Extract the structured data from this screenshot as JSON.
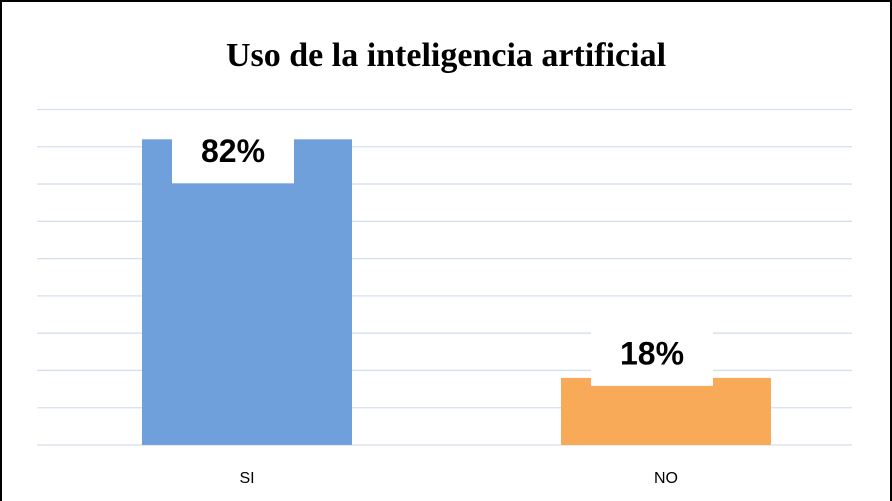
{
  "chart_data": {
    "type": "bar",
    "title": "Uso de la inteligencia artificial",
    "categories": [
      "SI",
      "NO"
    ],
    "values": [
      82,
      18
    ],
    "value_labels": [
      "82%",
      "18%"
    ],
    "colors": [
      "#6fa0dc",
      "#f9aa58"
    ],
    "ylim": [
      0,
      90
    ],
    "yticks": [
      0,
      10,
      20,
      30,
      40,
      50,
      60,
      70,
      80,
      90
    ],
    "grid": true
  }
}
